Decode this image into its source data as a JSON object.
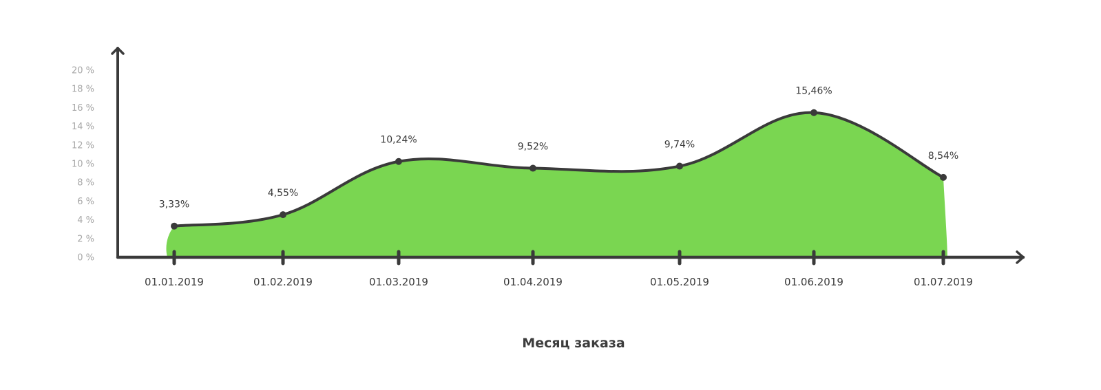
{
  "chart_data": {
    "type": "area",
    "title": "",
    "xlabel": "Месяц заказа",
    "ylabel": "",
    "x": [
      "01.01.2019",
      "01.02.2019",
      "01.03.2019",
      "01.04.2019",
      "01.05.2019",
      "01.06.2019",
      "01.07.2019"
    ],
    "series": [
      {
        "values": [
          3.33,
          4.55,
          10.24,
          9.52,
          9.74,
          15.46,
          8.54
        ],
        "labels": [
          "3,33%",
          "4,55%",
          "10,24%",
          "9,52%",
          "9,74%",
          "15,46%",
          "8,54%"
        ],
        "color": "#7ad651"
      }
    ],
    "ylim": [
      0,
      20
    ],
    "yticks": [
      0,
      2,
      4,
      6,
      8,
      10,
      12,
      14,
      16,
      18,
      20
    ],
    "ytick_labels": [
      "0 %",
      "2 %",
      "4 %",
      "6 %",
      "8 %",
      "10 %",
      "12 %",
      "14 %",
      "16 %",
      "18 %",
      "20 %"
    ],
    "grid": false,
    "legend": "none",
    "colors": {
      "fill": "#7ad651",
      "line": "#3a3a3a",
      "axis": "#3a3a3a",
      "ytick_text": "#a7a7a7",
      "xtick_text": "#3a3a3a"
    }
  }
}
